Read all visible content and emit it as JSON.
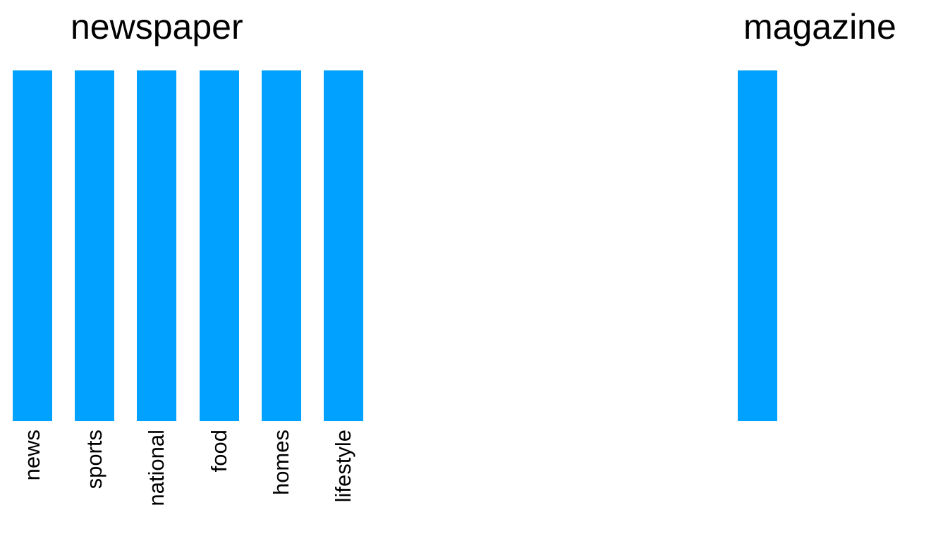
{
  "groups": [
    {
      "title": "newspaper",
      "items": [
        {
          "label": "news"
        },
        {
          "label": "sports"
        },
        {
          "label": "national"
        },
        {
          "label": "food"
        },
        {
          "label": "homes"
        },
        {
          "label": "lifestyle"
        }
      ]
    },
    {
      "title": "magazine",
      "items": [
        {
          "label": ""
        }
      ]
    }
  ],
  "colors": {
    "bar": "#00a1ff",
    "text": "#000000",
    "background": "#ffffff"
  }
}
